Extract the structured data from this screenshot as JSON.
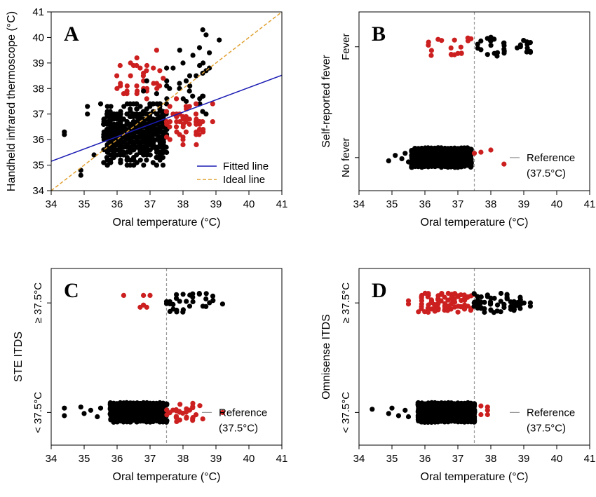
{
  "colors": {
    "black_points": "#000000",
    "red_points": "#cc1f1f",
    "fitted_line": "#1c1cb4",
    "ideal_line": "#e0a030",
    "reference_line": "#999999"
  },
  "chart_data": [
    {
      "panel": "A",
      "type": "scatter",
      "xlabel": "Oral temperature (°C)",
      "ylabel": "Handheld infrared thermoscope (°C)",
      "xlim": [
        34,
        41
      ],
      "ylim": [
        34,
        41
      ],
      "xticks": [
        "34",
        "35",
        "36",
        "37",
        "38",
        "39",
        "40",
        "41"
      ],
      "yticks": [
        "34",
        "35",
        "36",
        "37",
        "38",
        "39",
        "40",
        "41"
      ],
      "legend": {
        "position": "bottom-right",
        "entries": [
          {
            "label": "Fitted line",
            "color": "#1c1cb4",
            "style": "solid"
          },
          {
            "label": "Ideal line",
            "color": "#e0a030",
            "style": "dashed"
          }
        ]
      },
      "lines": [
        {
          "name": "Fitted line",
          "x": [
            34,
            41
          ],
          "y": [
            35.15,
            38.52
          ]
        },
        {
          "name": "Ideal line",
          "x": [
            34,
            41
          ],
          "y": [
            34,
            41
          ]
        }
      ],
      "clusters": [
        {
          "color": "black",
          "count": 620,
          "x_range": [
            35.6,
            37.5
          ],
          "y_range": [
            35.0,
            37.4
          ]
        },
        {
          "color": "black",
          "count": 25,
          "x_range": [
            37.4,
            38.8
          ],
          "y_range": [
            36.5,
            39.6
          ]
        },
        {
          "color": "red",
          "count": 45,
          "x_range": [
            37.5,
            38.6
          ],
          "y_range": [
            35.8,
            37.5
          ]
        },
        {
          "color": "red",
          "count": 25,
          "x_range": [
            36.0,
            37.4
          ],
          "y_range": [
            37.5,
            39.5
          ]
        }
      ],
      "points": [
        {
          "x": 34.4,
          "y": 36.3,
          "color": "black"
        },
        {
          "x": 34.4,
          "y": 36.2,
          "color": "black"
        },
        {
          "x": 34.9,
          "y": 34.8,
          "color": "black"
        },
        {
          "x": 34.9,
          "y": 34.6,
          "color": "black"
        },
        {
          "x": 35.1,
          "y": 37.3,
          "color": "black"
        },
        {
          "x": 35.1,
          "y": 37.0,
          "color": "black"
        },
        {
          "x": 35.3,
          "y": 35.4,
          "color": "black"
        },
        {
          "x": 35.5,
          "y": 37.4,
          "color": "black"
        },
        {
          "x": 38.6,
          "y": 40.3,
          "color": "black"
        },
        {
          "x": 38.7,
          "y": 40.1,
          "color": "black"
        },
        {
          "x": 39.1,
          "y": 39.9,
          "color": "black"
        },
        {
          "x": 38.8,
          "y": 39.4,
          "color": "black"
        },
        {
          "x": 38.5,
          "y": 39.6,
          "color": "black"
        },
        {
          "x": 38.3,
          "y": 39.3,
          "color": "black"
        },
        {
          "x": 37.9,
          "y": 39.5,
          "color": "black"
        },
        {
          "x": 38.0,
          "y": 39.0,
          "color": "black"
        },
        {
          "x": 38.8,
          "y": 38.8,
          "color": "black"
        },
        {
          "x": 37.7,
          "y": 38.8,
          "color": "black"
        },
        {
          "x": 38.4,
          "y": 38.5,
          "color": "black"
        },
        {
          "x": 37.2,
          "y": 37.8,
          "color": "black"
        },
        {
          "x": 36.8,
          "y": 37.9,
          "color": "black"
        },
        {
          "x": 36.9,
          "y": 38.3,
          "color": "black"
        },
        {
          "x": 37.2,
          "y": 39.5,
          "color": "red"
        },
        {
          "x": 36.5,
          "y": 38.9,
          "color": "red"
        },
        {
          "x": 36.7,
          "y": 38.8,
          "color": "red"
        },
        {
          "x": 37.1,
          "y": 38.8,
          "color": "red"
        },
        {
          "x": 36.8,
          "y": 38.6,
          "color": "red"
        },
        {
          "x": 37.4,
          "y": 38.4,
          "color": "red"
        },
        {
          "x": 36.1,
          "y": 38.1,
          "color": "red"
        },
        {
          "x": 36.3,
          "y": 37.9,
          "color": "red"
        },
        {
          "x": 36.6,
          "y": 37.8,
          "color": "red"
        },
        {
          "x": 36.9,
          "y": 37.6,
          "color": "red"
        },
        {
          "x": 37.8,
          "y": 37.6,
          "color": "red"
        },
        {
          "x": 37.6,
          "y": 37.3,
          "color": "red"
        },
        {
          "x": 38.1,
          "y": 37.2,
          "color": "red"
        },
        {
          "x": 37.7,
          "y": 37.0,
          "color": "red"
        },
        {
          "x": 38.0,
          "y": 36.8,
          "color": "red"
        },
        {
          "x": 38.4,
          "y": 36.2,
          "color": "red"
        },
        {
          "x": 38.9,
          "y": 37.4,
          "color": "red"
        },
        {
          "x": 38.9,
          "y": 36.7,
          "color": "red"
        },
        {
          "x": 38.5,
          "y": 36.4,
          "color": "red"
        },
        {
          "x": 38.0,
          "y": 35.8,
          "color": "red"
        },
        {
          "x": 37.5,
          "y": 36.1,
          "color": "red"
        }
      ]
    },
    {
      "panel": "B",
      "type": "scatter",
      "xlabel": "Oral temperature (°C)",
      "ylabel": "Self-reported fever",
      "xlim": [
        34,
        41
      ],
      "xticks": [
        "34",
        "35",
        "36",
        "37",
        "38",
        "39",
        "40",
        "41"
      ],
      "categories": [
        "No fever",
        "Fever"
      ],
      "reference": {
        "x": 37.5,
        "label_line1": "Reference",
        "label_line2": "(37.5°C)"
      },
      "clusters": [
        {
          "category": "No fever",
          "color": "black",
          "count": 640,
          "x_range": [
            35.6,
            37.4
          ]
        },
        {
          "category": "Fever",
          "color": "black",
          "count": 30,
          "x_range": [
            37.5,
            39.2
          ]
        },
        {
          "category": "Fever",
          "color": "red",
          "count": 18,
          "x_range": [
            36.1,
            37.4
          ]
        }
      ],
      "points": [
        {
          "x": 34.9,
          "cat": "No fever",
          "j": -0.15,
          "color": "black"
        },
        {
          "x": 35.1,
          "cat": "No fever",
          "j": 0.1,
          "color": "black"
        },
        {
          "x": 35.3,
          "cat": "No fever",
          "j": -0.05,
          "color": "black"
        },
        {
          "x": 35.4,
          "cat": "No fever",
          "j": 0.2,
          "color": "black"
        },
        {
          "x": 35.5,
          "cat": "No fever",
          "j": -0.2,
          "color": "black"
        },
        {
          "x": 37.5,
          "cat": "No fever",
          "j": 0.2,
          "color": "red"
        },
        {
          "x": 37.7,
          "cat": "No fever",
          "j": 0.25,
          "color": "red"
        },
        {
          "x": 38.0,
          "cat": "No fever",
          "j": 0.35,
          "color": "red"
        },
        {
          "x": 38.4,
          "cat": "No fever",
          "j": -0.3,
          "color": "red"
        },
        {
          "x": 39.2,
          "cat": "Fever",
          "j": 0.2,
          "color": "black"
        },
        {
          "x": 38.9,
          "cat": "Fever",
          "j": 0.0,
          "color": "black"
        }
      ]
    },
    {
      "panel": "C",
      "type": "scatter",
      "xlabel": "Oral temperature (°C)",
      "ylabel": "STE ITDS",
      "xlim": [
        34,
        41
      ],
      "xticks": [
        "34",
        "35",
        "36",
        "37",
        "38",
        "39",
        "40",
        "41"
      ],
      "categories": [
        "< 37.5°C",
        "≥ 37.5°C"
      ],
      "reference": {
        "x": 37.5,
        "label_line1": "Reference",
        "label_line2": "(37.5°C)"
      },
      "clusters": [
        {
          "category": "< 37.5°C",
          "color": "black",
          "count": 650,
          "x_range": [
            35.8,
            37.5
          ]
        },
        {
          "category": "< 37.5°C",
          "color": "red",
          "count": 30,
          "x_range": [
            37.5,
            38.5
          ]
        },
        {
          "category": "≥ 37.5°C",
          "color": "black",
          "count": 30,
          "x_range": [
            37.5,
            39.0
          ]
        }
      ],
      "points": [
        {
          "x": 34.4,
          "cat": "< 37.5°C",
          "j": 0.2,
          "color": "black"
        },
        {
          "x": 34.4,
          "cat": "< 37.5°C",
          "j": -0.15,
          "color": "black"
        },
        {
          "x": 34.9,
          "cat": "< 37.5°C",
          "j": 0.25,
          "color": "black"
        },
        {
          "x": 35.0,
          "cat": "< 37.5°C",
          "j": -0.05,
          "color": "black"
        },
        {
          "x": 35.2,
          "cat": "< 37.5°C",
          "j": 0.1,
          "color": "black"
        },
        {
          "x": 35.4,
          "cat": "< 37.5°C",
          "j": -0.2,
          "color": "black"
        },
        {
          "x": 35.5,
          "cat": "< 37.5°C",
          "j": 0.2,
          "color": "black"
        },
        {
          "x": 38.6,
          "cat": "< 37.5°C",
          "j": -0.3,
          "color": "red"
        },
        {
          "x": 39.2,
          "cat": "< 37.5°C",
          "j": 0.0,
          "color": "red"
        },
        {
          "x": 36.2,
          "cat": "≥ 37.5°C",
          "j": 0.35,
          "color": "red"
        },
        {
          "x": 36.8,
          "cat": "≥ 37.5°C",
          "j": 0.35,
          "color": "red"
        },
        {
          "x": 37.0,
          "cat": "≥ 37.5°C",
          "j": 0.35,
          "color": "red"
        },
        {
          "x": 36.8,
          "cat": "≥ 37.5°C",
          "j": -0.1,
          "color": "red"
        },
        {
          "x": 36.9,
          "cat": "≥ 37.5°C",
          "j": -0.2,
          "color": "red"
        },
        {
          "x": 36.7,
          "cat": "≥ 37.5°C",
          "j": -0.2,
          "color": "red"
        },
        {
          "x": 39.2,
          "cat": "≥ 37.5°C",
          "j": -0.05,
          "color": "black"
        }
      ]
    },
    {
      "panel": "D",
      "type": "scatter",
      "xlabel": "Oral temperature (°C)",
      "ylabel": "Omnisense ITDS",
      "xlim": [
        34,
        41
      ],
      "xticks": [
        "34",
        "35",
        "36",
        "37",
        "38",
        "39",
        "40",
        "41"
      ],
      "categories": [
        "< 37.5°C",
        "≥ 37.5°C"
      ],
      "reference": {
        "x": 37.5,
        "label_line1": "Reference",
        "label_line2": "(37.5°C)"
      },
      "clusters": [
        {
          "category": "< 37.5°C",
          "color": "black",
          "count": 600,
          "x_range": [
            35.8,
            37.5
          ]
        },
        {
          "category": "≥ 37.5°C",
          "color": "red",
          "count": 90,
          "x_range": [
            35.8,
            37.5
          ]
        },
        {
          "category": "≥ 37.5°C",
          "color": "black",
          "count": 60,
          "x_range": [
            37.5,
            39.0
          ]
        }
      ],
      "points": [
        {
          "x": 34.4,
          "cat": "< 37.5°C",
          "j": 0.15,
          "color": "black"
        },
        {
          "x": 34.9,
          "cat": "< 37.5°C",
          "j": -0.05,
          "color": "black"
        },
        {
          "x": 35.0,
          "cat": "< 37.5°C",
          "j": 0.2,
          "color": "black"
        },
        {
          "x": 35.2,
          "cat": "< 37.5°C",
          "j": -0.15,
          "color": "black"
        },
        {
          "x": 35.4,
          "cat": "< 37.5°C",
          "j": 0.1,
          "color": "black"
        },
        {
          "x": 35.5,
          "cat": "< 37.5°C",
          "j": -0.2,
          "color": "black"
        },
        {
          "x": 37.7,
          "cat": "< 37.5°C",
          "j": 0.3,
          "color": "red"
        },
        {
          "x": 37.9,
          "cat": "< 37.5°C",
          "j": 0.25,
          "color": "red"
        },
        {
          "x": 37.9,
          "cat": "< 37.5°C",
          "j": 0.1,
          "color": "red"
        },
        {
          "x": 37.7,
          "cat": "< 37.5°C",
          "j": -0.1,
          "color": "red"
        },
        {
          "x": 37.9,
          "cat": "< 37.5°C",
          "j": -0.1,
          "color": "red"
        },
        {
          "x": 35.5,
          "cat": "≥ 37.5°C",
          "j": -0.05,
          "color": "red"
        },
        {
          "x": 35.5,
          "cat": "≥ 37.5°C",
          "j": 0.1,
          "color": "red"
        },
        {
          "x": 39.2,
          "cat": "≥ 37.5°C",
          "j": 0.0,
          "color": "black"
        },
        {
          "x": 39.2,
          "cat": "≥ 37.5°C",
          "j": -0.15,
          "color": "black"
        }
      ]
    }
  ]
}
